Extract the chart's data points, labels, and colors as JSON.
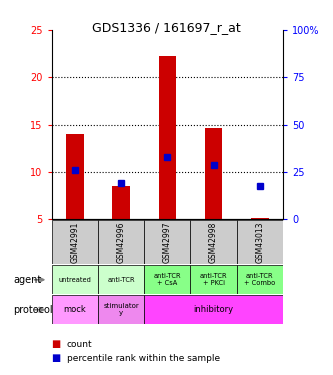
{
  "title": "GDS1336 / 161697_r_at",
  "samples": [
    "GSM42991",
    "GSM42996",
    "GSM42997",
    "GSM42998",
    "GSM43013"
  ],
  "bar_bottom": [
    5,
    5,
    5,
    5,
    5
  ],
  "bar_top": [
    14.0,
    8.5,
    22.3,
    14.7,
    5.15
  ],
  "percentile_y": [
    10.2,
    8.8,
    11.6,
    10.7,
    8.5
  ],
  "ylim": [
    5,
    25
  ],
  "yticks_left": [
    5,
    10,
    15,
    20,
    25
  ],
  "yticks_right": [
    0,
    25,
    50,
    75,
    100
  ],
  "right_ytick_labels": [
    "0",
    "25",
    "50",
    "75",
    "100%"
  ],
  "bar_color": "#cc0000",
  "dot_color": "#0000cc",
  "agent_labels": [
    "untreated",
    "anti-TCR",
    "anti-TCR\n+ CsA",
    "anti-TCR\n+ PKCi",
    "anti-TCR\n+ Combo"
  ],
  "agent_colors": [
    "#ccffcc",
    "#ccffcc",
    "#88ff88",
    "#88ff88",
    "#88ff88"
  ],
  "gsm_bg_color": "#cccccc",
  "protocol_color_mock": "#ff99ff",
  "protocol_color_stim": "#ee88ee",
  "protocol_color_inhib": "#ff44ff",
  "agent_row_label": "agent",
  "protocol_row_label": "protocol",
  "legend_count_color": "#cc0000",
  "legend_pct_color": "#0000cc",
  "legend_count_text": "count",
  "legend_pct_text": "percentile rank within the sample"
}
